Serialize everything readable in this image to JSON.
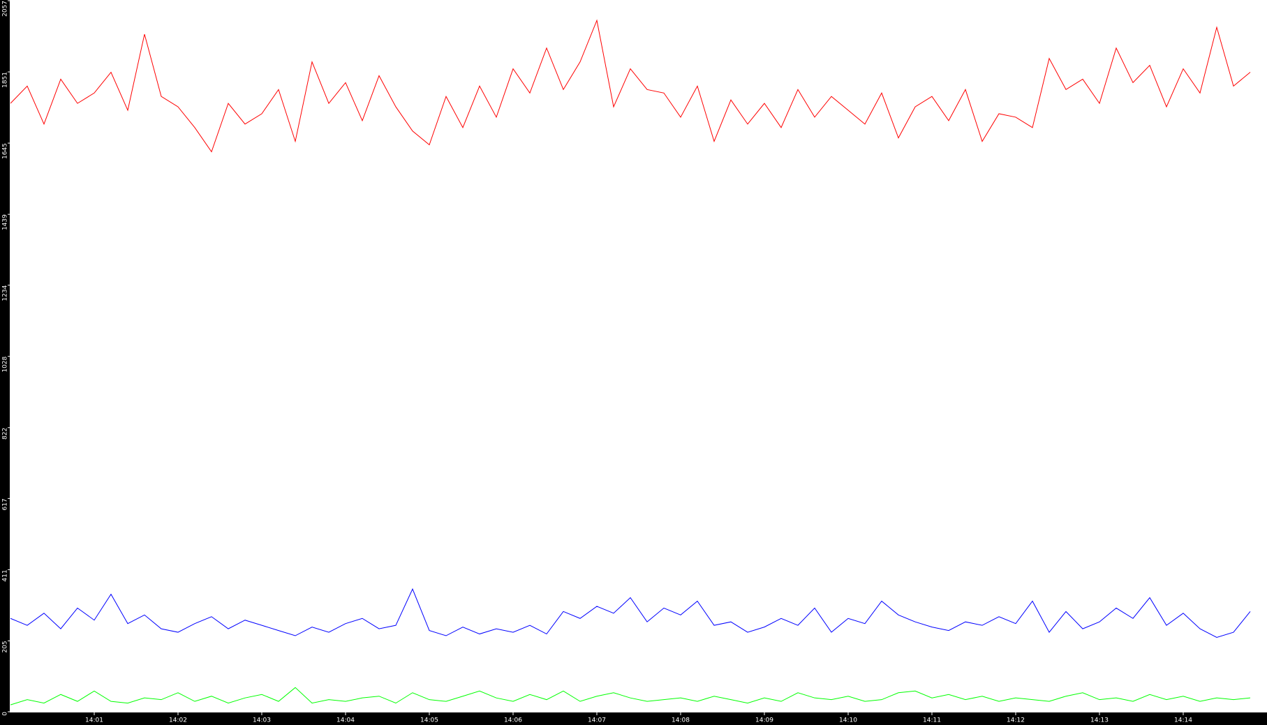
{
  "chart_data": {
    "type": "line",
    "x": [
      0,
      0.2,
      0.4,
      0.6,
      0.8,
      1,
      1.2,
      1.4,
      1.6,
      1.8,
      2,
      2.2,
      2.4,
      2.6,
      2.8,
      3,
      3.2,
      3.4,
      3.6,
      3.8,
      4,
      4.2,
      4.4,
      4.6,
      4.8,
      5,
      5.2,
      5.4,
      5.6,
      5.8,
      6,
      6.2,
      6.4,
      6.6,
      6.8,
      7,
      7.2,
      7.4,
      7.6,
      7.8,
      8,
      8.2,
      8.4,
      8.6,
      8.8,
      9,
      9.2,
      9.4,
      9.6,
      9.8,
      10,
      10.2,
      10.4,
      10.6,
      10.8,
      11,
      11.2,
      11.4,
      11.6,
      11.8,
      12,
      12.2,
      12.4,
      12.6,
      12.8,
      13,
      13.2,
      13.4,
      13.6,
      13.8,
      14,
      14.2,
      14.4,
      14.6,
      14.8
    ],
    "series": [
      {
        "color": "#ff0000",
        "values": [
          1760,
          1810,
          1700,
          1830,
          1760,
          1790,
          1850,
          1740,
          1960,
          1780,
          1750,
          1690,
          1620,
          1760,
          1700,
          1730,
          1800,
          1650,
          1880,
          1760,
          1820,
          1710,
          1840,
          1750,
          1680,
          1640,
          1780,
          1690,
          1810,
          1720,
          1860,
          1790,
          1920,
          1800,
          1880,
          2000,
          1750,
          1860,
          1800,
          1790,
          1720,
          1810,
          1650,
          1770,
          1700,
          1760,
          1690,
          1800,
          1720,
          1780,
          1740,
          1700,
          1790,
          1660,
          1750,
          1780,
          1710,
          1800,
          1650,
          1730,
          1720,
          1690,
          1890,
          1800,
          1830,
          1760,
          1920,
          1820,
          1870,
          1750,
          1860,
          1790,
          1980,
          1810,
          1850
        ]
      },
      {
        "color": "#0000ff",
        "values": [
          270,
          250,
          285,
          240,
          300,
          265,
          340,
          255,
          280,
          240,
          230,
          255,
          275,
          240,
          265,
          250,
          235,
          220,
          245,
          230,
          255,
          270,
          240,
          250,
          355,
          235,
          220,
          245,
          225,
          240,
          230,
          250,
          225,
          290,
          270,
          305,
          285,
          330,
          260,
          300,
          280,
          320,
          250,
          260,
          230,
          245,
          270,
          250,
          300,
          230,
          270,
          255,
          320,
          280,
          260,
          245,
          235,
          260,
          250,
          275,
          255,
          320,
          230,
          290,
          240,
          260,
          300,
          270,
          330,
          250,
          285,
          240,
          215,
          230,
          290
        ]
      },
      {
        "color": "#00ff00",
        "values": [
          20,
          35,
          25,
          50,
          30,
          60,
          30,
          25,
          40,
          35,
          55,
          30,
          45,
          25,
          40,
          50,
          30,
          70,
          25,
          35,
          30,
          40,
          45,
          25,
          55,
          35,
          30,
          45,
          60,
          40,
          30,
          50,
          35,
          60,
          30,
          45,
          55,
          40,
          30,
          35,
          40,
          30,
          45,
          35,
          25,
          40,
          30,
          55,
          40,
          35,
          45,
          30,
          35,
          55,
          60,
          40,
          50,
          35,
          45,
          30,
          40,
          35,
          30,
          45,
          55,
          35,
          40,
          30,
          50,
          35,
          45,
          30,
          40,
          35,
          40
        ]
      }
    ],
    "xlim": [
      0,
      15
    ],
    "xticks": [
      {
        "value": 1,
        "label": "14:01"
      },
      {
        "value": 2,
        "label": "14:02"
      },
      {
        "value": 3,
        "label": "14:03"
      },
      {
        "value": 4,
        "label": "14:04"
      },
      {
        "value": 5,
        "label": "14:05"
      },
      {
        "value": 6,
        "label": "14:06"
      },
      {
        "value": 7,
        "label": "14:07"
      },
      {
        "value": 8,
        "label": "14:08"
      },
      {
        "value": 9,
        "label": "14:09"
      },
      {
        "value": 10,
        "label": "14:10"
      },
      {
        "value": 11,
        "label": "14:11"
      },
      {
        "value": 12,
        "label": "14:12"
      },
      {
        "value": 13,
        "label": "14:13"
      },
      {
        "value": 14,
        "label": "14:14"
      }
    ],
    "ylim": [
      0,
      2057
    ],
    "yticks": [
      0,
      205,
      411,
      617,
      822,
      1028,
      1234,
      1439,
      1645,
      1851,
      2057
    ]
  }
}
